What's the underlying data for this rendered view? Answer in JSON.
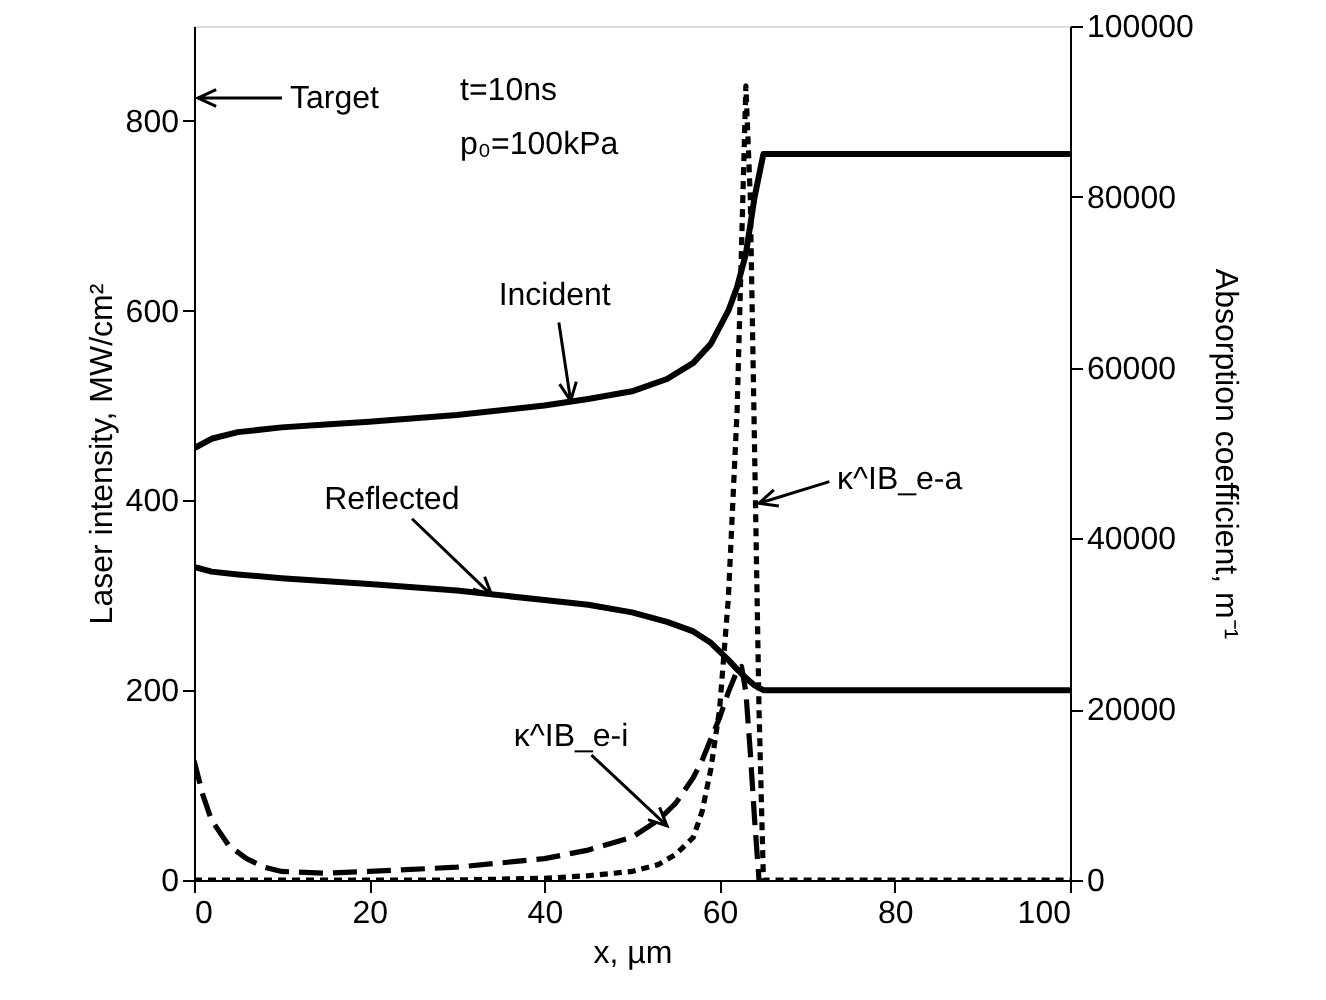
{
  "chart_data": {
    "type": "line",
    "xlabel": "x, µm",
    "ylabel": "Laser intensity, MW/cm²",
    "y2label": "Absorption coefficient, m⁻¹",
    "xlim": [
      0,
      100
    ],
    "xticks": [
      0,
      20,
      40,
      60,
      80,
      100
    ],
    "ylim": [
      0,
      900
    ],
    "yticks": [
      0,
      200,
      400,
      600,
      800
    ],
    "y2lim": [
      0,
      100000
    ],
    "y2ticks": [
      0,
      {
        "value": 20000,
        "label": "20000"
      },
      {
        "value": 40000,
        "label": "40000"
      },
      {
        "value": 60000,
        "label": "60000"
      },
      {
        "value": 80000,
        "label": "80000"
      },
      {
        "value": 100000,
        "label": "100000"
      }
    ],
    "grid": false,
    "marker": "none",
    "series": [
      {
        "color": "#000000",
        "line_style": "solid",
        "x": [
          0,
          2,
          5,
          10,
          15,
          20,
          30,
          40,
          45,
          50,
          54,
          57,
          59,
          61,
          62,
          63,
          64,
          65,
          70,
          80,
          90,
          100
        ],
        "values": [
          455,
          465,
          472,
          477,
          480,
          483,
          490,
          500,
          507,
          515,
          528,
          545,
          565,
          600,
          625,
          660,
          720,
          765,
          765,
          765,
          765,
          765
        ]
      },
      {
        "color": "#000000",
        "line_style": "solid",
        "x": [
          0,
          2,
          5,
          10,
          20,
          30,
          40,
          45,
          50,
          54,
          57,
          59,
          61,
          62,
          63,
          64,
          65,
          70,
          80,
          90,
          100
        ],
        "values": [
          330,
          325,
          322,
          318,
          312,
          305,
          295,
          290,
          282,
          272,
          262,
          250,
          232,
          222,
          213,
          205,
          200,
          200,
          200,
          200,
          200
        ]
      },
      {
        "color": "#000000",
        "line_style": "dotted",
        "axis": "y2",
        "x": [
          0,
          10,
          20,
          30,
          40,
          45,
          50,
          53,
          55,
          57,
          58,
          59,
          60,
          61,
          62,
          63,
          63.5,
          64,
          64.5,
          65,
          70,
          80,
          90,
          100
        ],
        "values": [
          0,
          0,
          0,
          0,
          200,
          500,
          1000,
          1800,
          3000,
          5000,
          8000,
          13000,
          20000,
          33000,
          55000,
          93000,
          80000,
          50000,
          20000,
          0,
          0,
          0,
          0,
          0
        ]
      },
      {
        "color": "#000000",
        "line_style": "dashed",
        "axis": "y2",
        "x": [
          0,
          1,
          2,
          4,
          6,
          8,
          10,
          15,
          20,
          30,
          40,
          45,
          50,
          53,
          55,
          57,
          58,
          59,
          60,
          61,
          62,
          62.5,
          63,
          63.5,
          64,
          64.5
        ],
        "values": [
          14000,
          10000,
          7000,
          4000,
          2500,
          1500,
          1000,
          800,
          1000,
          1500,
          2500,
          3500,
          5000,
          7000,
          9000,
          12000,
          14000,
          16500,
          19000,
          22000,
          24500,
          25000,
          22000,
          15000,
          7000,
          0
        ]
      }
    ],
    "annotations": [
      "Target",
      "t=10ns",
      "p₀=100kPa",
      {
        "text": "Incident",
        "x": 43,
        "y": 505
      },
      {
        "text": "Reflected",
        "x": 34,
        "y": 300
      },
      {
        "text": "κ^IB_e-a",
        "x": 64.5,
        "y": 397
      },
      {
        "text": "κ^IB_e-i",
        "x": 54,
        "y": 57
      }
    ]
  }
}
